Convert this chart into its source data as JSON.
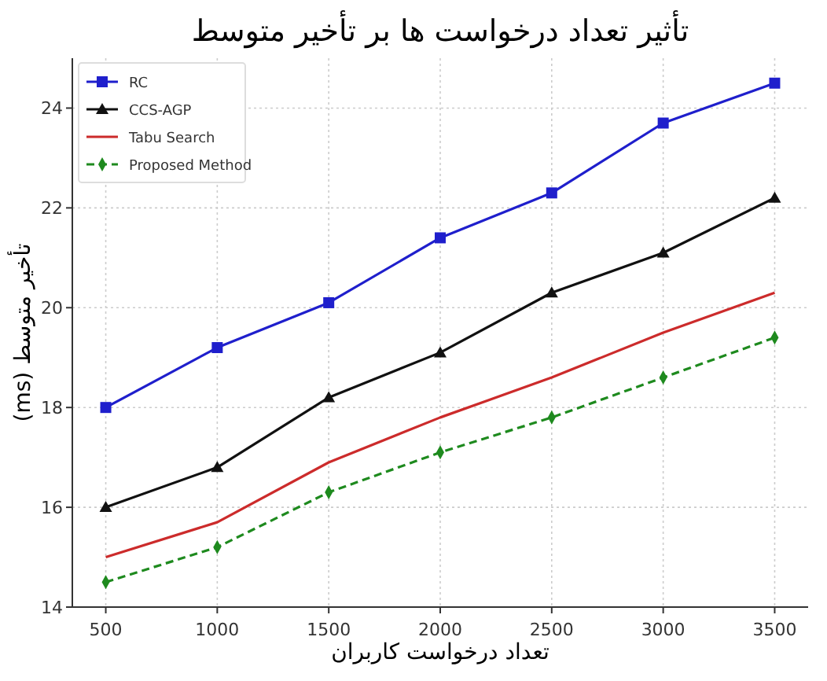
{
  "chart_data": {
    "type": "line",
    "title": "تأثیر تعداد درخواست ها بر تأخیر متوسط",
    "xlabel": "تعداد درخواست کاربران",
    "ylabel": "تأخیر متوسط   (ms)",
    "x": [
      500,
      1000,
      1500,
      2000,
      2500,
      3000,
      3500
    ],
    "series": [
      {
        "name": "RC",
        "color": "#1f1fcc",
        "marker": "square",
        "line_style": "solid",
        "values": [
          18,
          19.2,
          20.1,
          21.4,
          22.3,
          23.7,
          24.5
        ]
      },
      {
        "name": "CCS-AGP",
        "color": "#111111",
        "marker": "triangle",
        "line_style": "solid",
        "values": [
          16,
          16.8,
          18.2,
          19.1,
          20.3,
          21.1,
          22.2
        ]
      },
      {
        "name": "Tabu Search",
        "color": "#cc2b2b",
        "marker": "none",
        "line_style": "solid",
        "values": [
          15,
          15.7,
          16.9,
          17.8,
          18.6,
          19.5,
          20.3
        ]
      },
      {
        "name": "Proposed Method",
        "color": "#1e8a1e",
        "marker": "diamond",
        "line_style": "dashed",
        "values": [
          14.5,
          15.2,
          16.3,
          17.1,
          17.8,
          18.6,
          19.4
        ]
      }
    ],
    "xlim": [
      350,
      3650
    ],
    "ylim": [
      14,
      25
    ],
    "xticks": [
      500,
      1000,
      1500,
      2000,
      2500,
      3000,
      3500
    ],
    "yticks": [
      14,
      16,
      18,
      20,
      22,
      24
    ],
    "grid": true,
    "legend": "top left"
  }
}
